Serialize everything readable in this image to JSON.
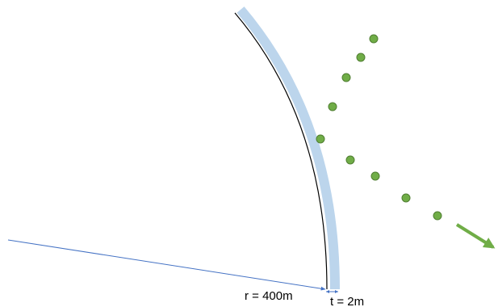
{
  "diagram": {
    "radius_label": "r = 400m",
    "thickness_label": "t = 2m",
    "colors": {
      "wall_band": "#bcd5ec",
      "wall_line": "#000000",
      "radius_line": "#4472c4",
      "particle": "#70ad47",
      "particle_stroke": "#507e32",
      "arrow": "#70ad47"
    }
  }
}
